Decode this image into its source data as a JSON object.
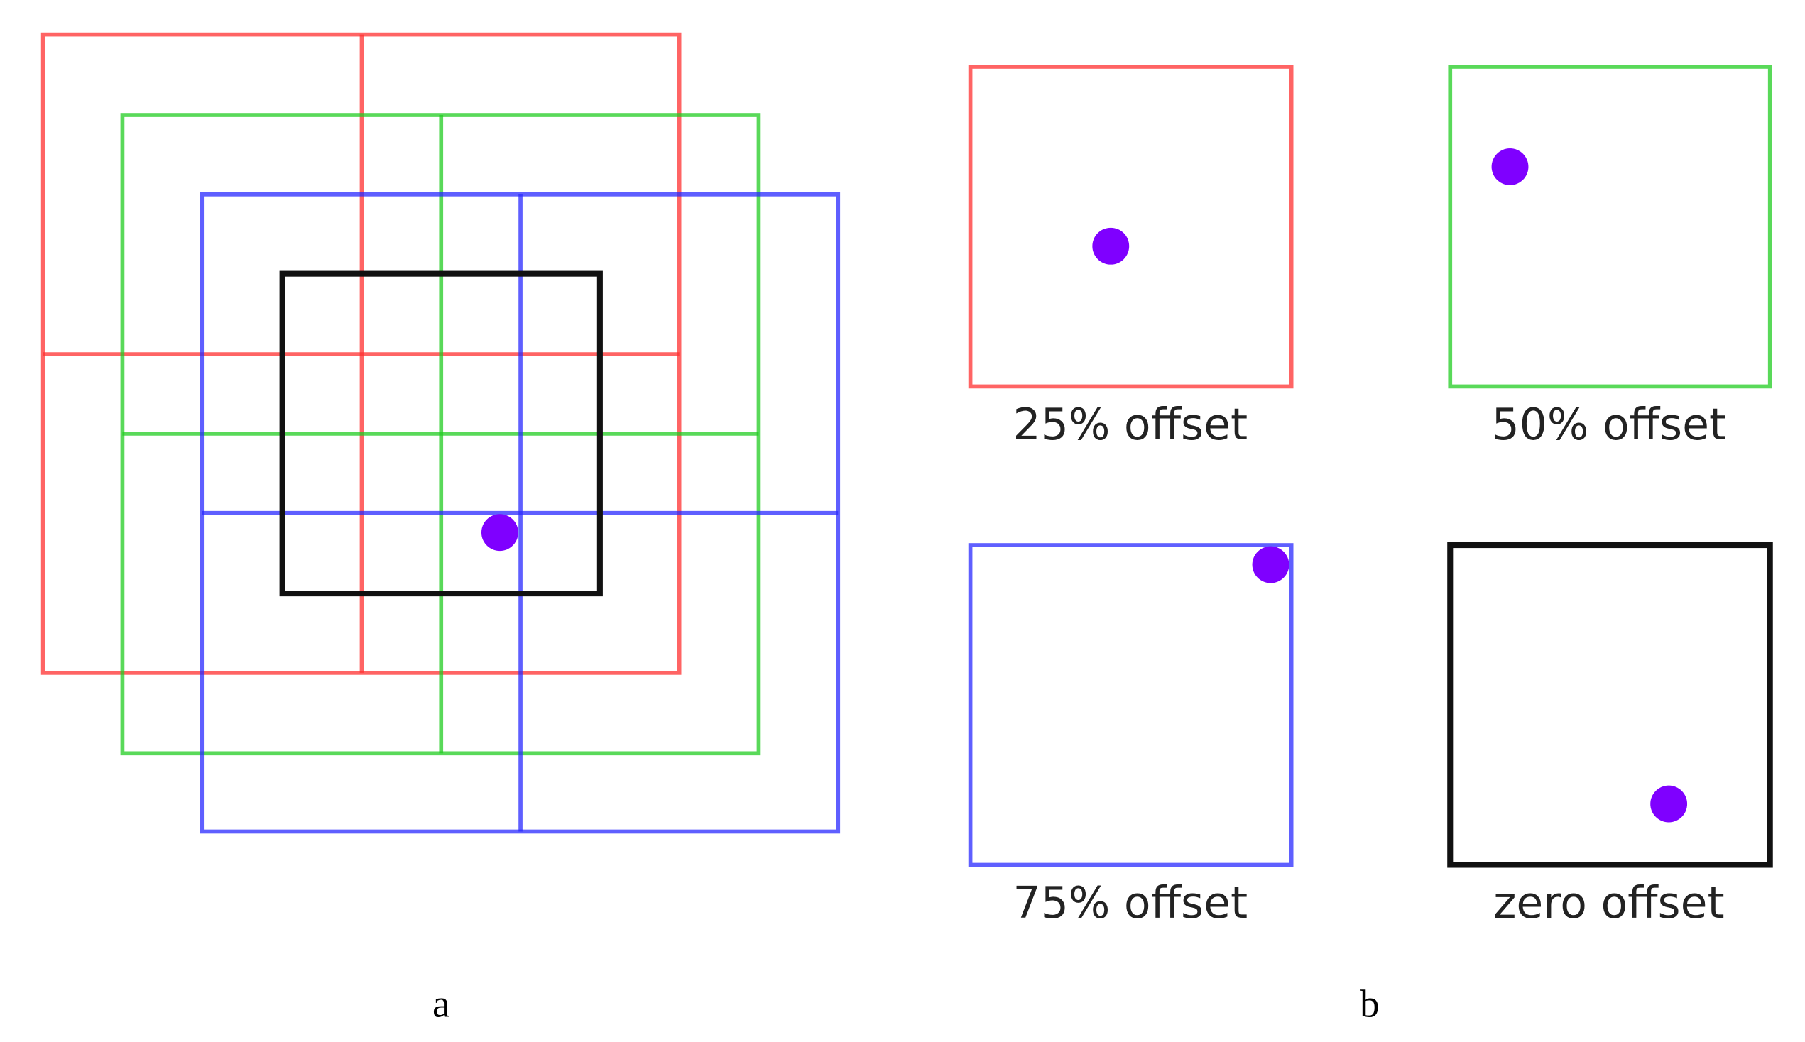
{
  "panel_a": {
    "label": "a"
  },
  "panel_b": {
    "label": "b",
    "boxes": [
      {
        "caption": "25% offset"
      },
      {
        "caption": "50% offset"
      },
      {
        "caption": "75% offset"
      },
      {
        "caption": "zero offset"
      }
    ]
  }
}
